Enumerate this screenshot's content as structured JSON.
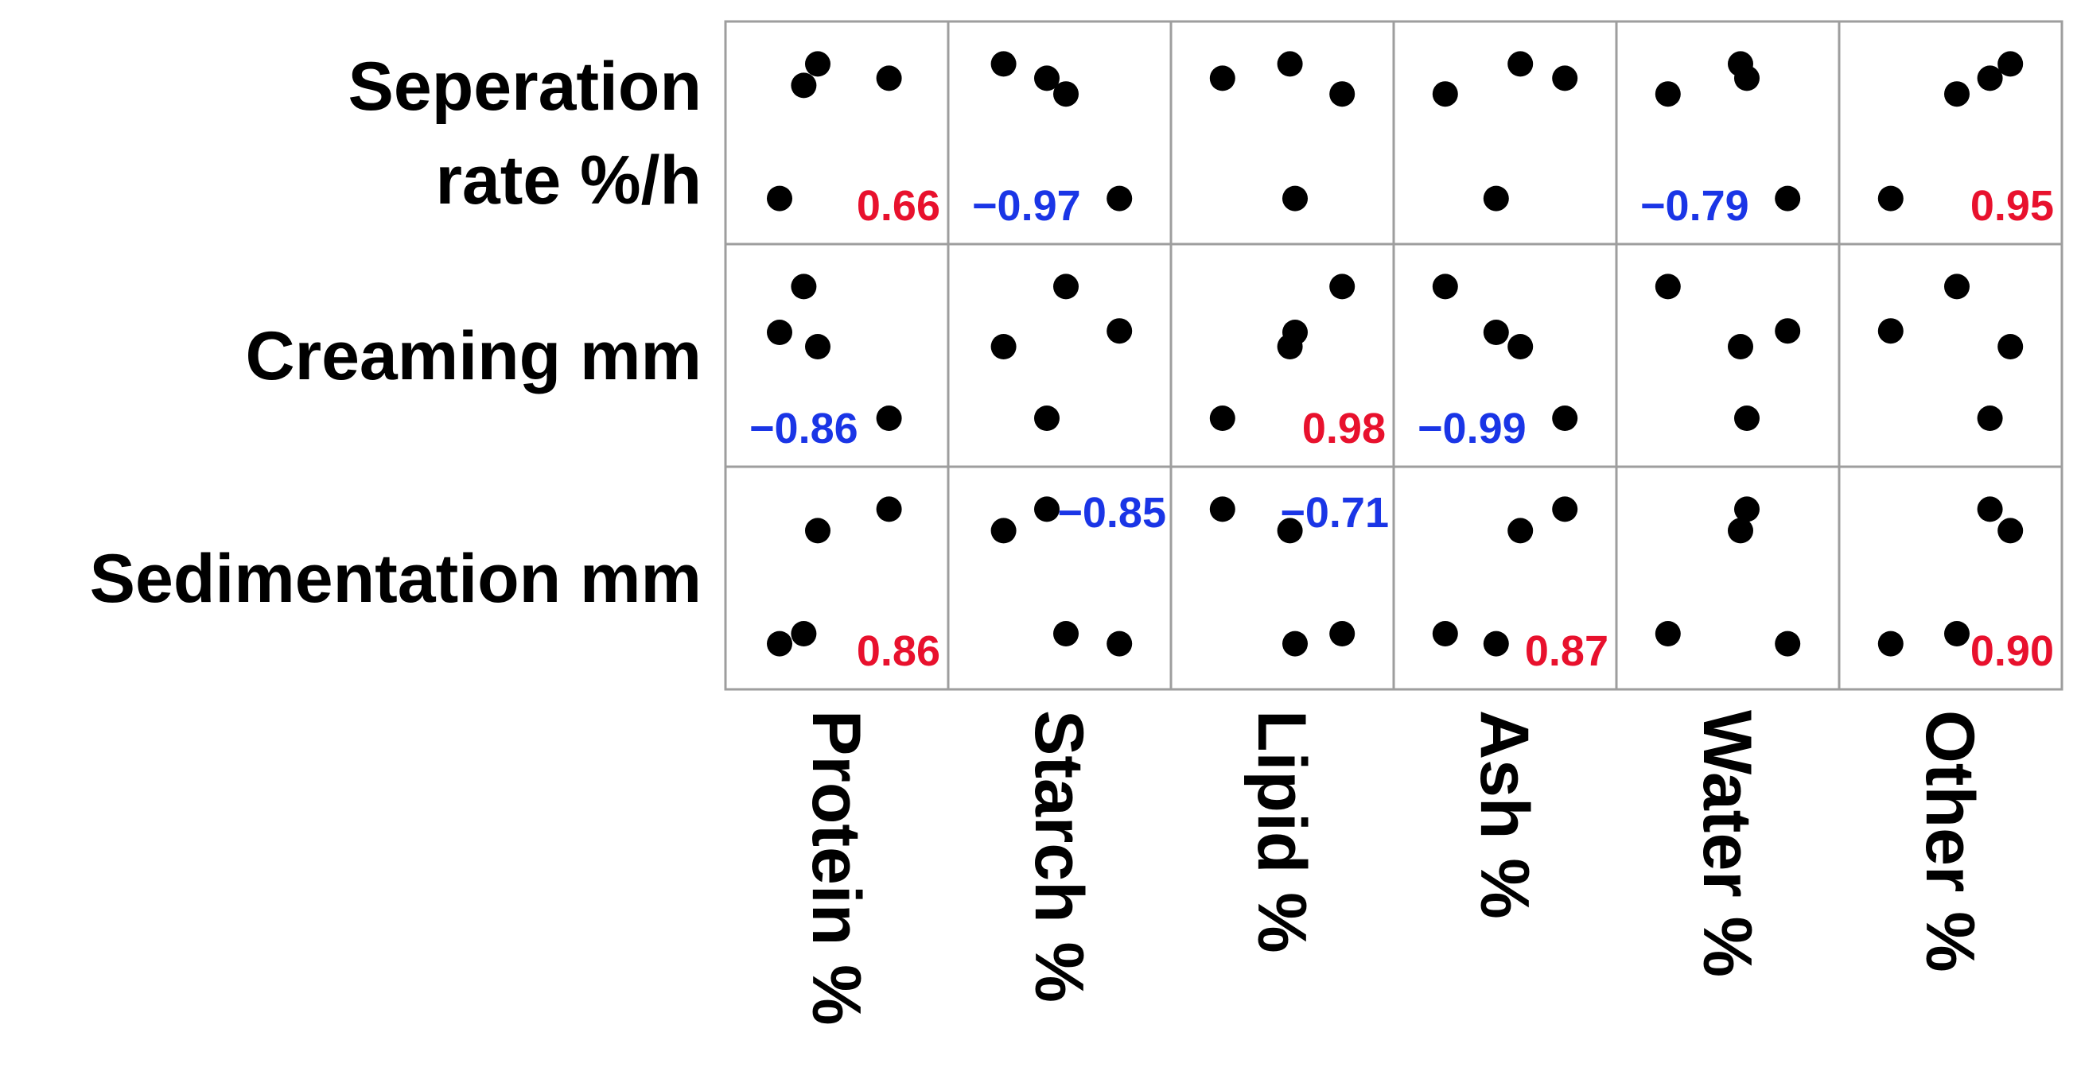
{
  "chart_data": {
    "type": "scatter",
    "title": "",
    "row_labels": [
      [
        "Seperation",
        "rate %/h"
      ],
      [
        "Creaming mm"
      ],
      [
        "Sedimentation mm"
      ]
    ],
    "col_labels": [
      "Protein %",
      "Starch %",
      "Lipid %",
      "Ash %",
      "Water %",
      "Other %"
    ],
    "axis_ticks_shown": false,
    "grid": false,
    "colors": {
      "positive": "#e8112d",
      "negative": "#1a35e6",
      "point": "#000000",
      "border": "#9e9e9e"
    },
    "cells": [
      [
        {
          "r": "0.66",
          "sign": "positive",
          "label_pos": "bottom-right",
          "points": [
            [
              0.05,
              0.03
            ],
            [
              0.24,
              0.82
            ],
            [
              0.35,
              0.97
            ],
            [
              0.91,
              0.87
            ]
          ]
        },
        {
          "r": "−0.97",
          "sign": "negative",
          "label_pos": "bottom-left",
          "points": [
            [
              0.06,
              0.97
            ],
            [
              0.4,
              0.87
            ],
            [
              0.55,
              0.76
            ],
            [
              0.97,
              0.03
            ]
          ]
        },
        {
          "r": "",
          "sign": "none",
          "label_pos": "none",
          "points": [
            [
              0.03,
              0.87
            ],
            [
              0.56,
              0.97
            ],
            [
              0.6,
              0.03
            ],
            [
              0.97,
              0.76
            ]
          ]
        },
        {
          "r": "",
          "sign": "none",
          "label_pos": "none",
          "points": [
            [
              0.03,
              0.76
            ],
            [
              0.43,
              0.03
            ],
            [
              0.62,
              0.97
            ],
            [
              0.97,
              0.87
            ]
          ]
        },
        {
          "r": "−0.79",
          "sign": "negative",
          "label_pos": "bottom-left",
          "points": [
            [
              0.03,
              0.76
            ],
            [
              0.6,
              0.97
            ],
            [
              0.65,
              0.87
            ],
            [
              0.97,
              0.03
            ]
          ]
        },
        {
          "r": "0.95",
          "sign": "positive",
          "label_pos": "bottom-right",
          "points": [
            [
              0.03,
              0.03
            ],
            [
              0.55,
              0.76
            ],
            [
              0.81,
              0.87
            ],
            [
              0.97,
              0.97
            ]
          ]
        }
      ],
      [
        {
          "r": "−0.86",
          "sign": "negative",
          "label_pos": "bottom-left",
          "points": [
            [
              0.05,
              0.65
            ],
            [
              0.24,
              0.97
            ],
            [
              0.35,
              0.55
            ],
            [
              0.91,
              0.05
            ]
          ]
        },
        {
          "r": "",
          "sign": "none",
          "label_pos": "none",
          "points": [
            [
              0.06,
              0.55
            ],
            [
              0.4,
              0.05
            ],
            [
              0.55,
              0.97
            ],
            [
              0.97,
              0.66
            ]
          ]
        },
        {
          "r": "0.98",
          "sign": "positive",
          "label_pos": "bottom-right",
          "points": [
            [
              0.03,
              0.05
            ],
            [
              0.56,
              0.55
            ],
            [
              0.6,
              0.65
            ],
            [
              0.97,
              0.97
            ]
          ]
        },
        {
          "r": "−0.99",
          "sign": "negative",
          "label_pos": "bottom-left",
          "points": [
            [
              0.03,
              0.97
            ],
            [
              0.43,
              0.65
            ],
            [
              0.62,
              0.55
            ],
            [
              0.97,
              0.05
            ]
          ]
        },
        {
          "r": "",
          "sign": "none",
          "label_pos": "none",
          "points": [
            [
              0.03,
              0.97
            ],
            [
              0.6,
              0.55
            ],
            [
              0.65,
              0.05
            ],
            [
              0.97,
              0.66
            ]
          ]
        },
        {
          "r": "",
          "sign": "none",
          "label_pos": "none",
          "points": [
            [
              0.03,
              0.66
            ],
            [
              0.55,
              0.97
            ],
            [
              0.81,
              0.05
            ],
            [
              0.97,
              0.55
            ]
          ]
        }
      ],
      [
        {
          "r": "0.86",
          "sign": "positive",
          "label_pos": "bottom-right",
          "points": [
            [
              0.05,
              0.03
            ],
            [
              0.24,
              0.1
            ],
            [
              0.35,
              0.82
            ],
            [
              0.91,
              0.97
            ]
          ]
        },
        {
          "r": "−0.85",
          "sign": "negative",
          "label_pos": "top-right",
          "points": [
            [
              0.06,
              0.82
            ],
            [
              0.4,
              0.97
            ],
            [
              0.55,
              0.1
            ],
            [
              0.97,
              0.03
            ]
          ]
        },
        {
          "r": "−0.71",
          "sign": "negative",
          "label_pos": "top-right",
          "points": [
            [
              0.03,
              0.97
            ],
            [
              0.56,
              0.82
            ],
            [
              0.6,
              0.03
            ],
            [
              0.97,
              0.1
            ]
          ]
        },
        {
          "r": "0.87",
          "sign": "positive",
          "label_pos": "bottom-right",
          "points": [
            [
              0.03,
              0.1
            ],
            [
              0.43,
              0.03
            ],
            [
              0.62,
              0.82
            ],
            [
              0.97,
              0.97
            ]
          ]
        },
        {
          "r": "",
          "sign": "none",
          "label_pos": "none",
          "points": [
            [
              0.03,
              0.1
            ],
            [
              0.6,
              0.82
            ],
            [
              0.65,
              0.97
            ],
            [
              0.97,
              0.03
            ]
          ]
        },
        {
          "r": "0.90",
          "sign": "positive",
          "label_pos": "bottom-right",
          "points": [
            [
              0.03,
              0.03
            ],
            [
              0.55,
              0.1
            ],
            [
              0.81,
              0.97
            ],
            [
              0.97,
              0.82
            ]
          ]
        }
      ]
    ]
  }
}
